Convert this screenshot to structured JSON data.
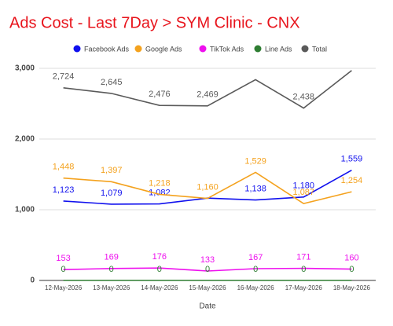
{
  "chart_data": {
    "type": "line",
    "title": "Ads Cost - Last 7Day > SYM Clinic - CNX",
    "x_label": "Date",
    "categories": [
      "12-May-2026",
      "13-May-2026",
      "14-May-2026",
      "15-May-2026",
      "16-May-2026",
      "17-May-2026",
      "18-May-2026"
    ],
    "series": [
      {
        "name": "Facebook Ads",
        "color": "#1010ee",
        "values": [
          1123,
          1079,
          1082,
          1165,
          1138,
          1180,
          1559
        ],
        "value_labels": [
          "1,123",
          "1,079",
          "1,082",
          null,
          "1,138",
          "1,180",
          "1,559"
        ]
      },
      {
        "name": "Google Ads",
        "color": "#f4a21e",
        "values": [
          1448,
          1397,
          1218,
          1160,
          1529,
          1087,
          1254
        ],
        "value_labels": [
          "1,448",
          "1,397",
          "1,218",
          "1,160",
          "1,529",
          "1,087",
          "1,254"
        ]
      },
      {
        "name": "TikTok Ads",
        "color": "#ee10ee",
        "values": [
          153,
          169,
          176,
          133,
          167,
          171,
          160
        ]
      },
      {
        "name": "Line Ads",
        "color": "#2e7d32",
        "values": [
          0,
          0,
          0,
          0,
          0,
          0,
          0
        ]
      },
      {
        "name": "Total",
        "color": "#5a5a5a",
        "values": [
          2724,
          2645,
          2476,
          2469,
          2840,
          2438,
          2970
        ],
        "value_labels": [
          "2,724",
          "2,645",
          "2,476",
          "2,469",
          null,
          "2,438",
          null
        ]
      }
    ],
    "ylim": [
      0,
      3000
    ],
    "yticks": [
      0,
      {
        "value": 1000,
        "label": "1,000"
      },
      {
        "value": 2000,
        "label": "2,000"
      },
      {
        "value": 3000,
        "label": "3,000"
      }
    ],
    "grid": true
  }
}
